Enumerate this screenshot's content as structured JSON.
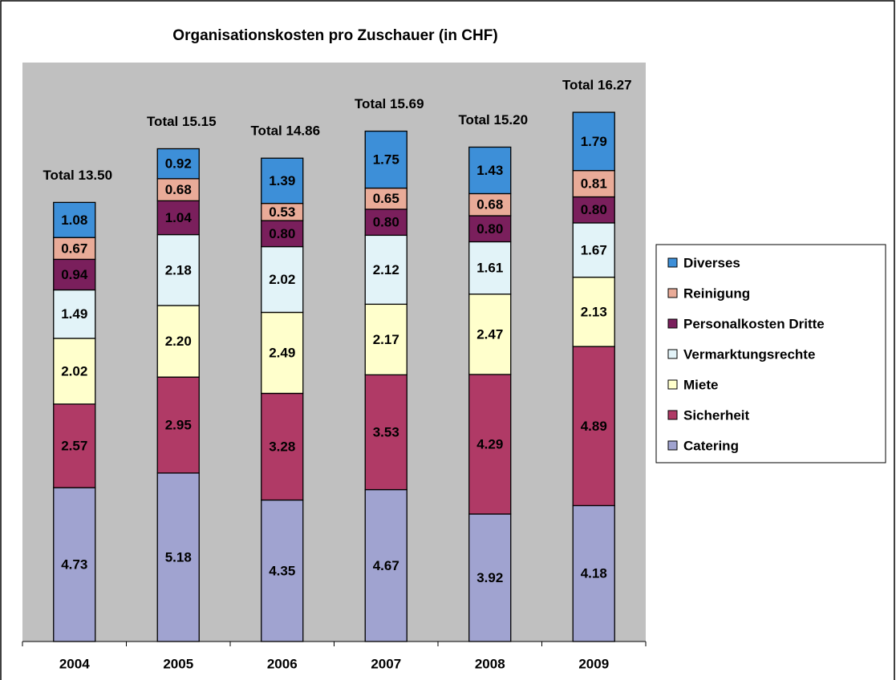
{
  "chart_data": {
    "type": "stacked_bar",
    "title": "Organisationskosten pro Zuschauer (in CHF)",
    "categories": [
      "2004",
      "2005",
      "2006",
      "2007",
      "2008",
      "2009"
    ],
    "total_labels": [
      "Total 13.50",
      "Total 15.15",
      "Total 14.86",
      "Total 15.69",
      "Total 15.20",
      "Total 16.27"
    ],
    "ylim": [
      0,
      17.8
    ],
    "legend_position": "right",
    "series": [
      {
        "name": "Catering",
        "color": "#a0a3d0",
        "values": [
          4.73,
          5.18,
          4.35,
          4.67,
          3.92,
          4.18
        ],
        "value_labels": [
          "4.73",
          "5.18",
          "4.35",
          "4.67",
          "3.92",
          "4.18"
        ]
      },
      {
        "name": "Sicherheit",
        "color": "#b03a66",
        "values": [
          2.57,
          2.95,
          3.28,
          3.53,
          4.29,
          4.89
        ],
        "value_labels": [
          "2.57",
          "2.95",
          "3.28",
          "3.53",
          "4.29",
          "4.89"
        ]
      },
      {
        "name": "Miete",
        "color": "#ffffcc",
        "values": [
          2.02,
          2.2,
          2.49,
          2.17,
          2.47,
          2.13
        ],
        "value_labels": [
          "2.02",
          "2.20",
          "2.49",
          "2.17",
          "2.47",
          "2.13"
        ]
      },
      {
        "name": "Vermarktungsrechte",
        "color": "#e2f3f8",
        "values": [
          1.49,
          2.18,
          2.02,
          2.12,
          1.61,
          1.67
        ],
        "value_labels": [
          "1.49",
          "2.18",
          "2.02",
          "2.12",
          "1.61",
          "1.67"
        ]
      },
      {
        "name": "Personalkosten Dritte",
        "color": "#7a1f5c",
        "values": [
          0.94,
          1.04,
          0.8,
          0.8,
          0.8,
          0.8
        ],
        "value_labels": [
          "0.94",
          "1.04",
          "0.80",
          "0.80",
          "0.80",
          "0.80"
        ]
      },
      {
        "name": "Reinigung",
        "color": "#e9ab98",
        "values": [
          0.67,
          0.68,
          0.53,
          0.65,
          0.68,
          0.81
        ],
        "value_labels": [
          "0.67",
          "0.68",
          "0.53",
          "0.65",
          "0.68",
          "0.81"
        ]
      },
      {
        "name": "Diverses",
        "color": "#3d8fd8",
        "values": [
          1.08,
          0.92,
          1.39,
          1.75,
          1.43,
          1.79
        ],
        "value_labels": [
          "1.08",
          "0.92",
          "1.39",
          "1.75",
          "1.43",
          "1.79"
        ]
      }
    ]
  }
}
